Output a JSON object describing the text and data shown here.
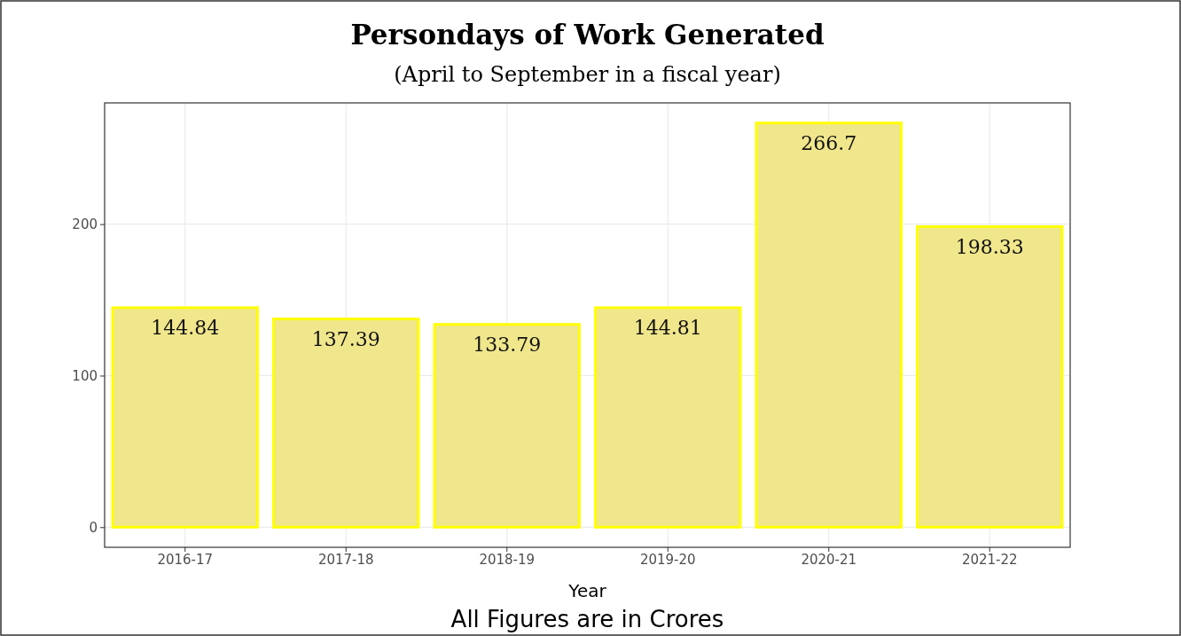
{
  "chart_data": {
    "type": "bar",
    "title": "Persondays of Work Generated",
    "subtitle": "(April to September in a fiscal year)",
    "xlabel": "Year",
    "annotations": [
      "All Figures are in Crores"
    ],
    "categories": [
      "2016-17",
      "2017-18",
      "2018-19",
      "2019-20",
      "2020-21",
      "2021-22"
    ],
    "values": [
      144.84,
      137.39,
      133.79,
      144.81,
      266.7,
      198.33
    ],
    "color": "#f0e68c",
    "data_labels": true,
    "ylim": [
      -13.3,
      280
    ],
    "yticks": [
      0,
      100,
      200
    ],
    "grid": true
  }
}
